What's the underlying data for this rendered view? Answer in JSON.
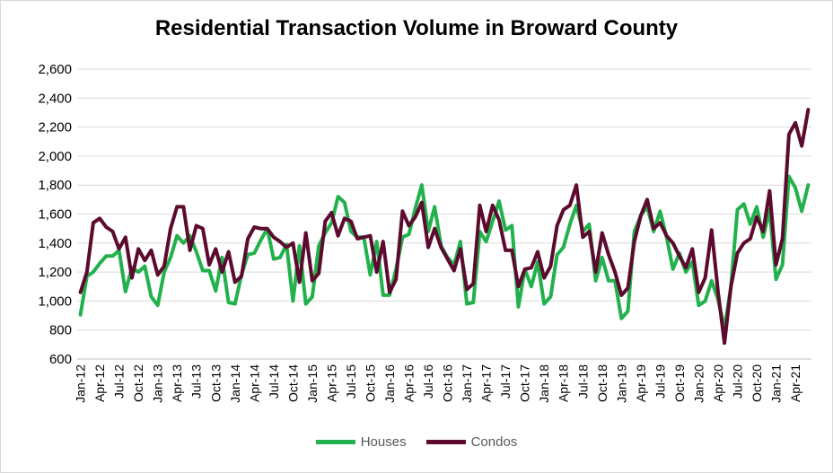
{
  "chart_data": {
    "type": "line",
    "title": "Residential Transaction Volume in Broward County",
    "ylim": [
      600,
      2600
    ],
    "yticks": [
      "600",
      "800",
      "1,000",
      "1,200",
      "1,400",
      "1,600",
      "1,800",
      "2,000",
      "2,200",
      "2,400",
      "2,600"
    ],
    "x": [
      "Jan-12",
      "Feb-12",
      "Mar-12",
      "Apr-12",
      "May-12",
      "Jun-12",
      "Jul-12",
      "Aug-12",
      "Sep-12",
      "Oct-12",
      "Nov-12",
      "Dec-12",
      "Jan-13",
      "Feb-13",
      "Mar-13",
      "Apr-13",
      "May-13",
      "Jun-13",
      "Jul-13",
      "Aug-13",
      "Sep-13",
      "Oct-13",
      "Nov-13",
      "Dec-13",
      "Jan-14",
      "Feb-14",
      "Mar-14",
      "Apr-14",
      "May-14",
      "Jun-14",
      "Jul-14",
      "Aug-14",
      "Sep-14",
      "Oct-14",
      "Nov-14",
      "Dec-14",
      "Jan-15",
      "Feb-15",
      "Mar-15",
      "Apr-15",
      "May-15",
      "Jun-15",
      "Jul-15",
      "Aug-15",
      "Sep-15",
      "Oct-15",
      "Nov-15",
      "Dec-15",
      "Jan-16",
      "Feb-16",
      "Mar-16",
      "Apr-16",
      "May-16",
      "Jun-16",
      "Jul-16",
      "Aug-16",
      "Sep-16",
      "Oct-16",
      "Nov-16",
      "Dec-16",
      "Jan-17",
      "Feb-17",
      "Mar-17",
      "Apr-17",
      "May-17",
      "Jun-17",
      "Jul-17",
      "Aug-17",
      "Sep-17",
      "Oct-17",
      "Nov-17",
      "Dec-17",
      "Jan-18",
      "Feb-18",
      "Mar-18",
      "Apr-18",
      "May-18",
      "Jun-18",
      "Jul-18",
      "Aug-18",
      "Sep-18",
      "Oct-18",
      "Nov-18",
      "Dec-18",
      "Jan-19",
      "Feb-19",
      "Mar-19",
      "Apr-19",
      "May-19",
      "Jun-19",
      "Jul-19",
      "Aug-19",
      "Sep-19",
      "Oct-19",
      "Nov-19",
      "Dec-19",
      "Jan-20",
      "Feb-20",
      "Mar-20",
      "Apr-20",
      "May-20",
      "Jun-20",
      "Jul-20",
      "Aug-20",
      "Sep-20",
      "Oct-20",
      "Nov-20",
      "Dec-20",
      "Jan-21",
      "Feb-21",
      "Mar-21",
      "Apr-21",
      "May-21",
      "Jun-21"
    ],
    "xtick_labels": [
      "Jan-12",
      "Apr-12",
      "Jul-12",
      "Oct-12",
      "Jan-13",
      "Apr-13",
      "Jul-13",
      "Oct-13",
      "Jan-14",
      "Apr-14",
      "Jul-14",
      "Oct-14",
      "Jan-15",
      "Apr-15",
      "Jul-15",
      "Oct-15",
      "Jan-16",
      "Apr-16",
      "Jul-16",
      "Oct-16",
      "Jan-17",
      "Apr-17",
      "Jul-17",
      "Oct-17",
      "Jan-18",
      "Apr-18",
      "Jul-18",
      "Oct-18",
      "Jan-19",
      "Apr-19",
      "Jul-19",
      "Oct-19",
      "Jan-20",
      "Apr-20",
      "Jul-20",
      "Oct-20",
      "Jan-21",
      "Apr-21"
    ],
    "series": [
      {
        "name": "Houses",
        "color": "#22b14c",
        "values": [
          905,
          1170,
          1200,
          1260,
          1310,
          1310,
          1350,
          1065,
          1230,
          1200,
          1240,
          1030,
          970,
          1200,
          1300,
          1450,
          1400,
          1450,
          1340,
          1210,
          1210,
          1070,
          1300,
          990,
          980,
          1180,
          1320,
          1330,
          1420,
          1500,
          1290,
          1300,
          1390,
          1000,
          1380,
          980,
          1030,
          1380,
          1470,
          1540,
          1720,
          1680,
          1480,
          1440,
          1440,
          1180,
          1410,
          1040,
          1040,
          1220,
          1440,
          1460,
          1640,
          1800,
          1480,
          1650,
          1380,
          1300,
          1250,
          1410,
          980,
          990,
          1480,
          1410,
          1550,
          1690,
          1490,
          1520,
          960,
          1220,
          1100,
          1270,
          980,
          1030,
          1320,
          1370,
          1530,
          1660,
          1480,
          1530,
          1140,
          1300,
          1140,
          1140,
          880,
          930,
          1480,
          1590,
          1650,
          1480,
          1620,
          1440,
          1220,
          1330,
          1200,
          1270,
          970,
          1000,
          1140,
          1010,
          810,
          1100,
          1630,
          1670,
          1530,
          1650,
          1440,
          1630,
          1150,
          1250,
          1860,
          1780,
          1620,
          1800
        ]
      },
      {
        "name": "Condos",
        "color": "#5c0a2e",
        "values": [
          1060,
          1200,
          1540,
          1570,
          1510,
          1480,
          1360,
          1440,
          1160,
          1360,
          1280,
          1350,
          1180,
          1240,
          1500,
          1650,
          1650,
          1350,
          1520,
          1500,
          1250,
          1360,
          1200,
          1340,
          1130,
          1170,
          1430,
          1510,
          1500,
          1500,
          1440,
          1410,
          1370,
          1400,
          1130,
          1470,
          1140,
          1190,
          1550,
          1610,
          1450,
          1570,
          1550,
          1430,
          1440,
          1450,
          1200,
          1410,
          1060,
          1150,
          1620,
          1520,
          1580,
          1680,
          1370,
          1500,
          1370,
          1290,
          1210,
          1360,
          1080,
          1120,
          1660,
          1480,
          1660,
          1560,
          1350,
          1350,
          1100,
          1220,
          1230,
          1340,
          1160,
          1240,
          1520,
          1630,
          1660,
          1800,
          1440,
          1480,
          1200,
          1470,
          1320,
          1200,
          1040,
          1090,
          1410,
          1590,
          1700,
          1500,
          1540,
          1450,
          1400,
          1310,
          1230,
          1360,
          1060,
          1160,
          1490,
          1060,
          710,
          1100,
          1330,
          1400,
          1430,
          1580,
          1480,
          1760,
          1250,
          1430,
          2150,
          2230,
          2070,
          2320
        ]
      }
    ],
    "grid": true,
    "legend_position": "bottom"
  }
}
